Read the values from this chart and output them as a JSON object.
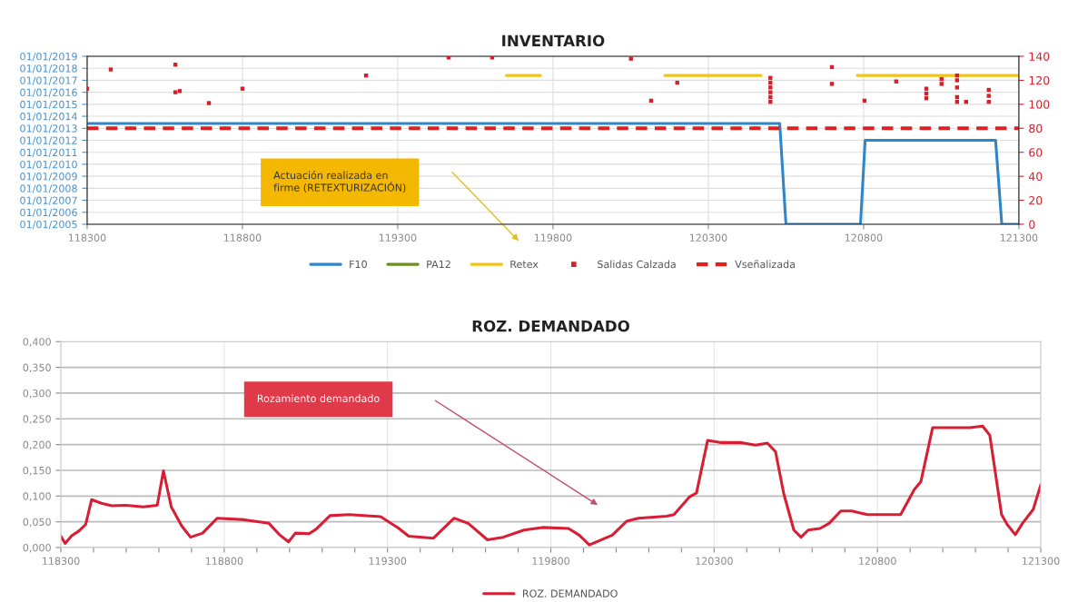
{
  "chart_data": [
    {
      "type": "line",
      "title": "INVENTARIO",
      "xlim": [
        118300,
        121300
      ],
      "xticks": [
        118300,
        118800,
        119300,
        119800,
        120300,
        120800,
        121300
      ],
      "ylim": [
        "2005-01-01",
        "2019-01-01"
      ],
      "yticks": [
        {
          "value": "2005-01-01",
          "label": "01/01/2005"
        },
        {
          "value": "2006-01-01",
          "label": "01/01/2006"
        },
        {
          "value": "2007-01-01",
          "label": "01/01/2007"
        },
        {
          "value": "2008-01-01",
          "label": "01/01/2008"
        },
        {
          "value": "2009-01-01",
          "label": "01/01/2009"
        },
        {
          "value": "2010-01-01",
          "label": "01/01/2010"
        },
        {
          "value": "2011-01-01",
          "label": "01/01/2011"
        },
        {
          "value": "2012-01-01",
          "label": "01/01/2012"
        },
        {
          "value": "2013-01-01",
          "label": "01/01/2013"
        },
        {
          "value": "2014-01-01",
          "label": "01/01/2014"
        },
        {
          "value": "2015-01-01",
          "label": "01/01/2015"
        },
        {
          "value": "2016-01-01",
          "label": "01/01/2016"
        },
        {
          "value": "2017-01-01",
          "label": "01/01/2017"
        },
        {
          "value": "2018-01-01",
          "label": "01/01/2018"
        },
        {
          "value": "2019-01-01",
          "label": "01/01/2019"
        }
      ],
      "y2lim": [
        0,
        140
      ],
      "y2ticks": [
        0,
        20,
        40,
        60,
        80,
        100,
        120,
        140
      ],
      "grid": true,
      "legend": "bottom",
      "annotations": [
        "Actuación realizada en\nfirme (RETEXTURIZACIÓN)"
      ],
      "series": [
        {
          "name": "F10",
          "type": "line",
          "axis": "y2",
          "color": "#2e86c8",
          "x": [
            118300,
            120530,
            120550,
            120790,
            120805,
            121225,
            121245,
            121300
          ],
          "values": [
            84,
            84,
            0,
            0,
            70,
            70,
            0,
            0
          ]
        },
        {
          "name": "PA12",
          "type": "line",
          "axis": "y2",
          "color": "#6b8e23"
        },
        {
          "name": "Retex",
          "type": "line",
          "axis": "y2",
          "color": "#f0c419",
          "x": [
            119650,
            119760,
            119761,
            120160,
            120470,
            120471,
            120780,
            121300
          ],
          "values": [
            124,
            124,
            null,
            124,
            124,
            null,
            124,
            124
          ]
        },
        {
          "name": "Salidas Calzada",
          "type": "scatter",
          "axis": "y2",
          "marker": "square",
          "color": "#d4202a",
          "x": [
            118300,
            118376,
            118584,
            118584,
            118598,
            118692,
            118800,
            119198,
            119464,
            119604,
            120051,
            120116,
            120200,
            120500,
            120500,
            120500,
            120500,
            120500,
            120500,
            120698,
            120698,
            120803,
            120905,
            121002,
            121002,
            121002,
            121051,
            121051,
            121101,
            121101,
            121101,
            121101,
            121101,
            121130,
            121203,
            121203,
            121203
          ],
          "values": [
            113,
            129,
            133,
            110,
            111,
            101,
            113,
            124,
            139,
            139,
            138,
            103,
            118,
            102,
            106,
            110,
            114,
            118,
            122,
            131,
            117,
            103,
            119,
            105,
            109,
            113,
            117,
            121,
            102,
            106,
            114,
            120,
            124,
            102,
            102,
            107,
            112
          ]
        },
        {
          "name": "Vseñalizada",
          "type": "line",
          "axis": "y2",
          "line_style": "dashed",
          "color": "#e02020",
          "x": [
            118300,
            121300
          ],
          "values": [
            80,
            80
          ]
        }
      ]
    },
    {
      "type": "line",
      "title": "ROZ. DEMANDADO",
      "xlim": [
        118300,
        121300
      ],
      "xticks": [
        118300,
        {
          "value": 118400,
          "label": null
        },
        {
          "value": 118500,
          "label": null
        },
        {
          "value": 118600,
          "label": null
        },
        {
          "value": 118700,
          "label": null
        },
        118800,
        {
          "value": 118900,
          "label": null
        },
        {
          "value": 119000,
          "label": null
        },
        {
          "value": 119100,
          "label": null
        },
        {
          "value": 119200,
          "label": null
        },
        119300,
        {
          "value": 119400,
          "label": null
        },
        {
          "value": 119500,
          "label": null
        },
        {
          "value": 119600,
          "label": null
        },
        {
          "value": 119700,
          "label": null
        },
        119800,
        {
          "value": 119900,
          "label": null
        },
        {
          "value": 120000,
          "label": null
        },
        {
          "value": 120100,
          "label": null
        },
        {
          "value": 120200,
          "label": null
        },
        120300,
        {
          "value": 120400,
          "label": null
        },
        {
          "value": 120500,
          "label": null
        },
        {
          "value": 120600,
          "label": null
        },
        {
          "value": 120700,
          "label": null
        },
        120800,
        {
          "value": 120900,
          "label": null
        },
        {
          "value": 121000,
          "label": null
        },
        {
          "value": 121100,
          "label": null
        },
        {
          "value": 121200,
          "label": null
        },
        121300
      ],
      "ylim": [
        0,
        0.4
      ],
      "yticks": [
        {
          "value": 0,
          "label": "0,000"
        },
        {
          "value": 0.05,
          "label": "0,050"
        },
        {
          "value": 0.1,
          "label": "0,100"
        },
        {
          "value": 0.15,
          "label": "0,150"
        },
        {
          "value": 0.2,
          "label": "0,200"
        },
        {
          "value": 0.25,
          "label": "0,250"
        },
        {
          "value": 0.3,
          "label": "0,300"
        },
        {
          "value": 0.35,
          "label": "0,350"
        },
        {
          "value": 0.4,
          "label": "0,400"
        }
      ],
      "grid": true,
      "legend": "bottom",
      "annotations": [
        "Rozamiento demandado"
      ],
      "series": [
        {
          "name": "ROZ. DEMANDADO",
          "color": "#d81e34",
          "x": [
            118300,
            118313,
            118333,
            118355,
            118376,
            118394,
            118424,
            118456,
            118499,
            118552,
            118595,
            118614,
            118638,
            118670,
            118697,
            118734,
            118779,
            118862,
            118937,
            118969,
            118997,
            119018,
            119060,
            119082,
            119124,
            119183,
            119279,
            119333,
            119365,
            119440,
            119504,
            119547,
            119606,
            119654,
            119718,
            119774,
            119854,
            119887,
            119918,
            119988,
            120032,
            120068,
            120154,
            120177,
            120224,
            120246,
            120280,
            120318,
            120379,
            120427,
            120463,
            120488,
            120513,
            120544,
            120566,
            120588,
            120624,
            120652,
            120688,
            120721,
            120769,
            120838,
            120871,
            120913,
            120933,
            120969,
            121083,
            121122,
            121144,
            121180,
            121197,
            121222,
            121244,
            121277,
            121300
          ],
          "values": [
            0.022,
            0.008,
            0.023,
            0.032,
            0.045,
            0.093,
            0.086,
            0.081,
            0.082,
            0.079,
            0.082,
            0.149,
            0.079,
            0.042,
            0.02,
            0.028,
            0.057,
            0.054,
            0.047,
            0.025,
            0.011,
            0.028,
            0.027,
            0.036,
            0.062,
            0.064,
            0.06,
            0.038,
            0.022,
            0.018,
            0.057,
            0.047,
            0.015,
            0.02,
            0.034,
            0.039,
            0.037,
            0.024,
            0.005,
            0.024,
            0.051,
            0.057,
            0.061,
            0.064,
            0.098,
            0.106,
            0.208,
            0.204,
            0.204,
            0.199,
            0.203,
            0.186,
            0.105,
            0.034,
            0.02,
            0.034,
            0.037,
            0.047,
            0.071,
            0.071,
            0.064,
            0.064,
            0.064,
            0.113,
            0.128,
            0.233,
            0.233,
            0.236,
            0.218,
            0.064,
            0.045,
            0.025,
            0.047,
            0.074,
            0.122
          ]
        }
      ]
    }
  ]
}
